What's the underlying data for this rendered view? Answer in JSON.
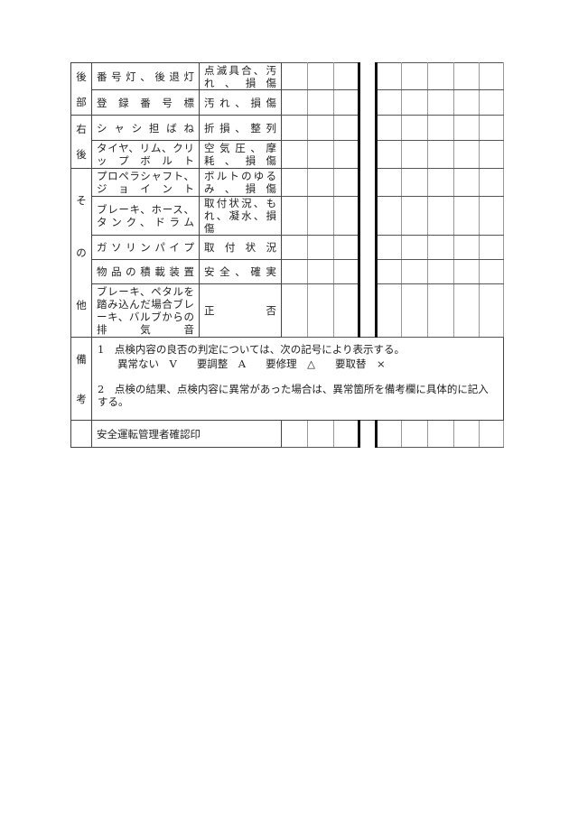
{
  "groups": [
    {
      "label": [
        "後",
        "部"
      ]
    },
    {
      "label": [
        "右",
        "後"
      ]
    },
    {
      "label": [
        "そ",
        "の",
        "他"
      ]
    },
    {
      "label": [
        "備",
        "考"
      ]
    }
  ],
  "rows": [
    {
      "item": "番号灯、後退灯",
      "content": "点滅具合、汚れ、損傷"
    },
    {
      "item": "登録番号標",
      "content": "汚れ、損傷"
    },
    {
      "item": "シャシ担ばね",
      "content": "折損、整列"
    },
    {
      "item": "タイヤ、リム、クリップボルト",
      "content": "空気圧、摩耗、損傷"
    },
    {
      "item": "プロペラシャフト、ジョイント",
      "content": "ボルトのゆるみ、損傷"
    },
    {
      "item": "ブレーキ、ホース、タンク、ドラム",
      "content": "取付状況、もれ、凝水、損傷"
    },
    {
      "item": "ガソリンパイプ",
      "content": "取付状況"
    },
    {
      "item": "物品の積載装置",
      "content": "安全、確実"
    },
    {
      "item": "ブレーキ、ペタルを踏み込んだ場合ブレーキ、バルブからの排気音",
      "content": "正　　否"
    }
  ],
  "remarks": {
    "line1": "1　点検内容の良否の判定については、次の記号により表示する。",
    "symbols": [
      "異常ない　V",
      "要調整　A",
      "要修理　△",
      "要取替　×"
    ],
    "line2": "2　点検の結果、点検内容に異常があった場合は、異常箇所を備考欄に具体的に記入する。"
  },
  "confirm_label": "安全運転管理者確認印"
}
